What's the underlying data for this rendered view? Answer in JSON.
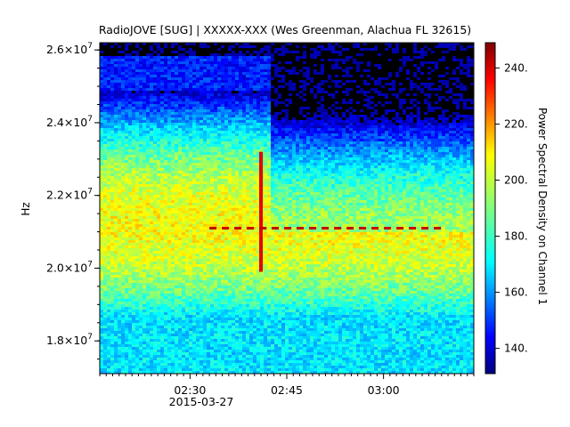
{
  "chart_data": {
    "type": "heatmap",
    "title": "RadioJOVE [SUG] | XXXXX-XXX (Wes Greenman, Alachua FL 32615)",
    "ylabel": "Hz",
    "colorbar_label": "Power Spectral Density on Channel 1",
    "x_tick_labels": [
      "02:30",
      "02:45",
      "03:00"
    ],
    "x_date_label": "2015-03-27",
    "xlim": [
      "02:16",
      "03:14"
    ],
    "y_tick_labels": [
      "1.8",
      "2.0",
      "2.2",
      "2.4",
      "2.6"
    ],
    "y_tick_exponent": "×10",
    "y_tick_power": "7",
    "y_tick_values": [
      18000000,
      20000000,
      22000000,
      24000000,
      26000000
    ],
    "ylim": [
      17100000,
      26200000
    ],
    "colorbar_range": [
      131,
      249
    ],
    "colorbar_tick_labels": [
      "140.",
      "160.",
      "180.",
      "200.",
      "220.",
      "240."
    ],
    "colorbar_tick_values": [
      140,
      160,
      180,
      200,
      220,
      240
    ],
    "colormap": "jet",
    "features": {
      "broadband_peak_band_hz": [
        21000000,
        21500000
      ],
      "background_step_time": "02:42",
      "burst_time": "02:41",
      "burst_freq_range_hz": [
        19900000,
        23200000
      ],
      "carrier_freq_hz": 21100000,
      "carrier_time_range": [
        "02:33",
        "03:09"
      ]
    }
  },
  "colors": {
    "background": "#ffffff",
    "plot_bg": "#000000",
    "axis": "#000000"
  }
}
